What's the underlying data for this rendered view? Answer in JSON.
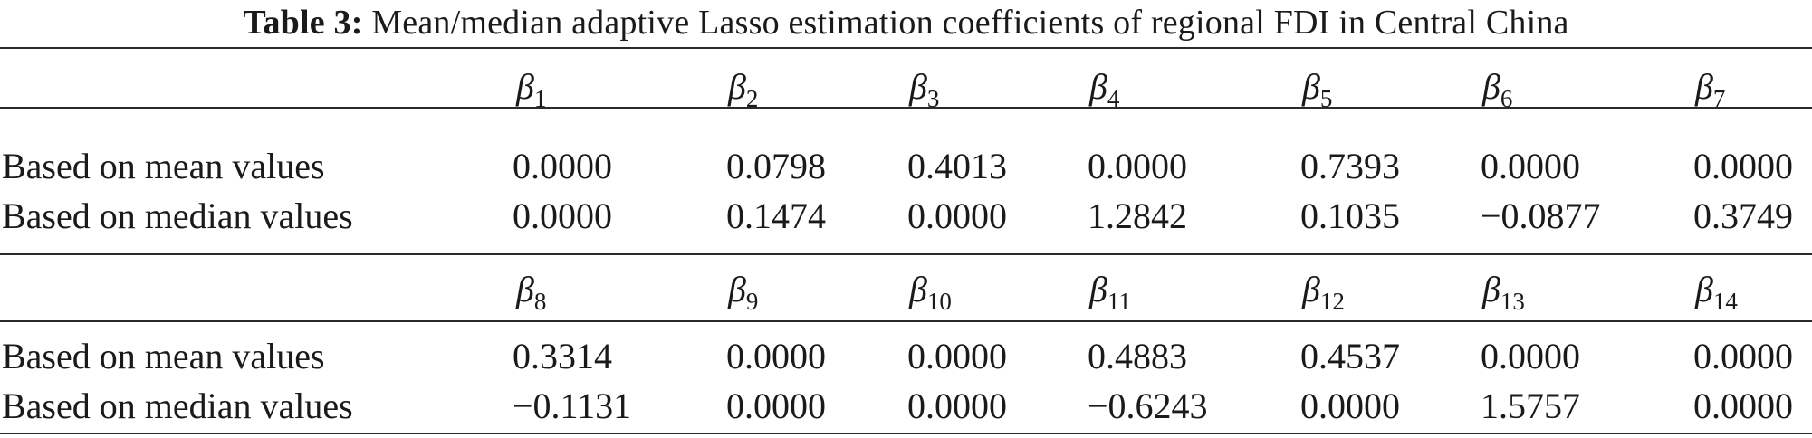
{
  "caption": {
    "label": "Table 3:",
    "text": "Mean/median adaptive Lasso estimation coefficients of regional FDI in Central China"
  },
  "blocks": [
    {
      "headers": [
        "1",
        "2",
        "3",
        "4",
        "5",
        "6",
        "7"
      ],
      "rows": [
        {
          "label": "Based on mean values",
          "values": [
            "0.0000",
            "0.0798",
            "0.4013",
            "0.0000",
            "0.7393",
            "0.0000",
            "0.0000"
          ]
        },
        {
          "label": "Based on median values",
          "values": [
            "0.0000",
            "0.1474",
            "0.0000",
            "1.2842",
            "0.1035",
            "−0.0877",
            "0.3749"
          ]
        }
      ]
    },
    {
      "headers": [
        "8",
        "9",
        "10",
        "11",
        "12",
        "13",
        "14"
      ],
      "rows": [
        {
          "label": "Based on mean values",
          "values": [
            "0.3314",
            "0.0000",
            "0.0000",
            "0.4883",
            "0.4537",
            "0.0000",
            "0.0000"
          ]
        },
        {
          "label": "Based on median values",
          "values": [
            "−0.1131",
            "0.0000",
            "0.0000",
            "−0.6243",
            "0.0000",
            "1.5757",
            "0.0000"
          ]
        }
      ]
    }
  ]
}
